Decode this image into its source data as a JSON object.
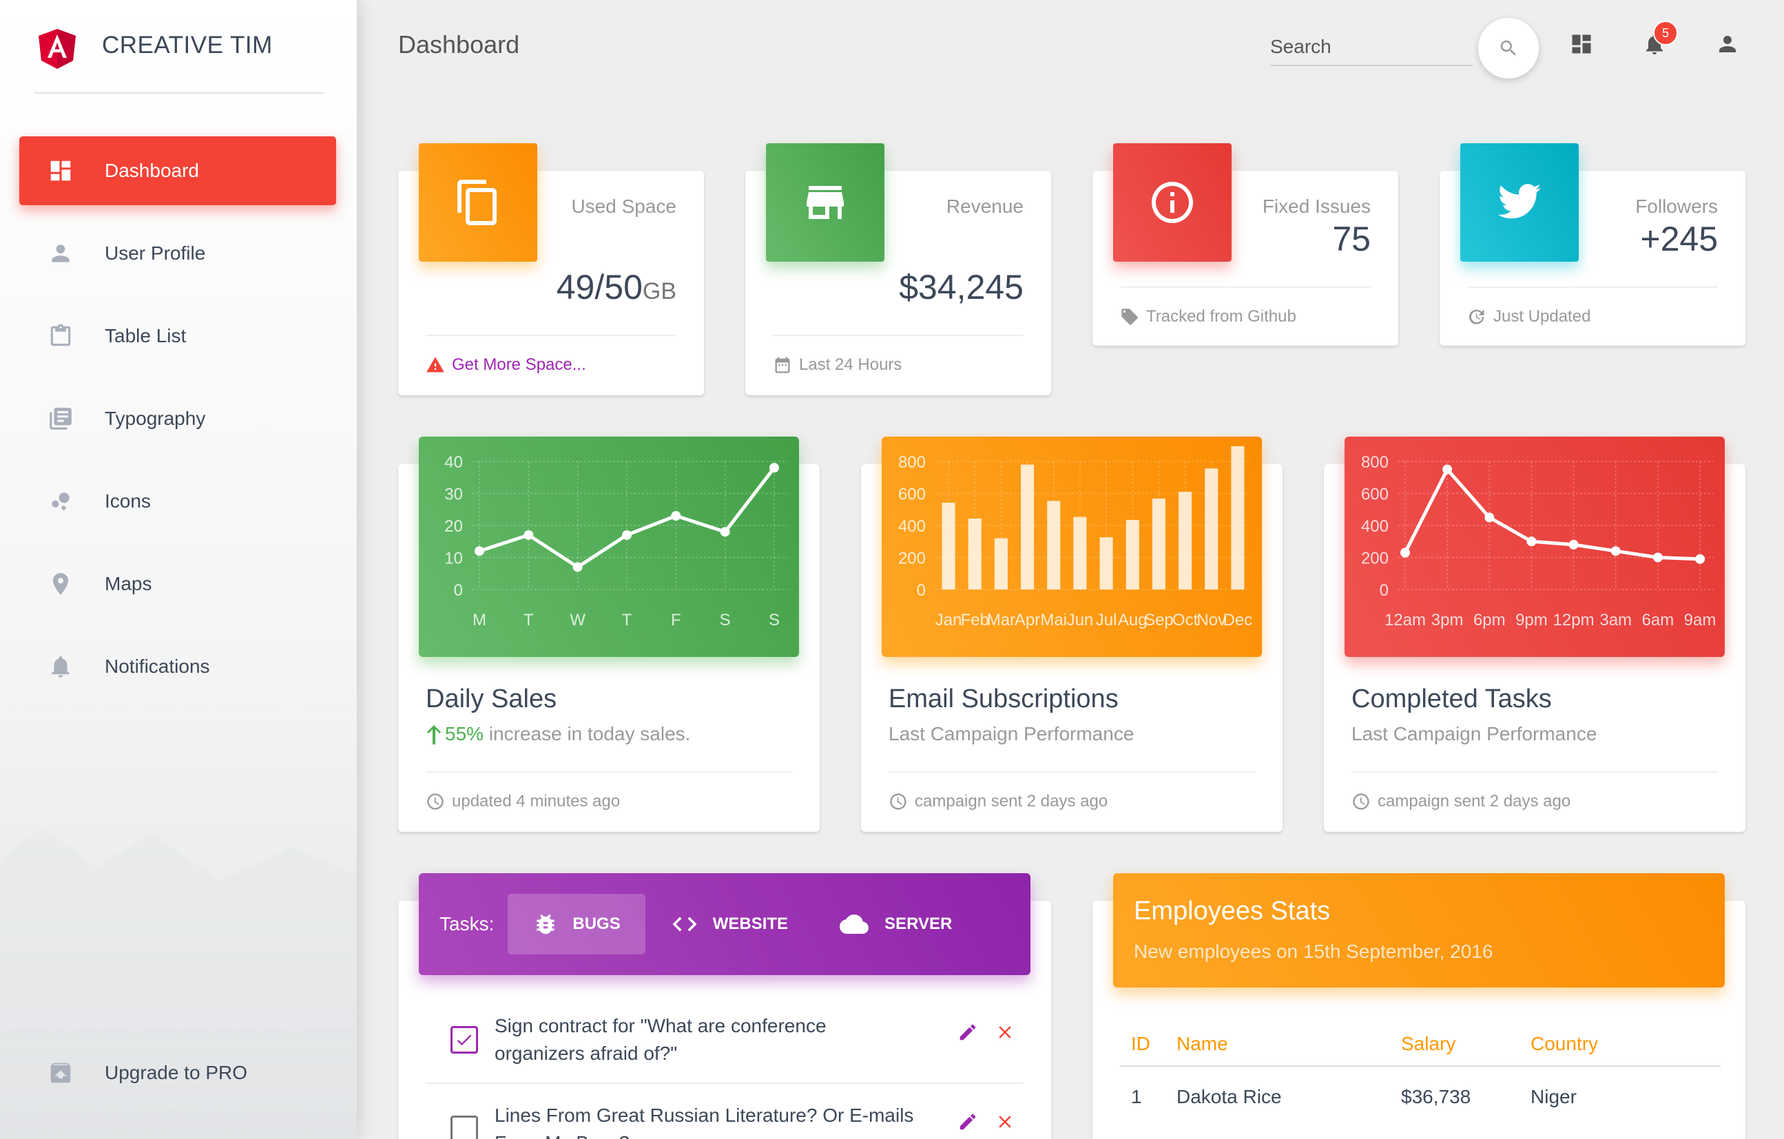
{
  "brand": {
    "name": "CREATIVE TIM"
  },
  "sidebar": {
    "items": [
      {
        "label": "Dashboard",
        "icon": "dashboard-icon",
        "active": true
      },
      {
        "label": "User Profile",
        "icon": "person-icon"
      },
      {
        "label": "Table List",
        "icon": "clipboard-icon"
      },
      {
        "label": "Typography",
        "icon": "library-books-icon"
      },
      {
        "label": "Icons",
        "icon": "bubble-chart-icon"
      },
      {
        "label": "Maps",
        "icon": "location-icon"
      },
      {
        "label": "Notifications",
        "icon": "bell-icon"
      }
    ],
    "upgrade": {
      "label": "Upgrade to PRO",
      "icon": "unarchive-icon"
    }
  },
  "topbar": {
    "title": "Dashboard",
    "search_placeholder": "Search",
    "notification_count": "5"
  },
  "stats": [
    {
      "category": "Used Space",
      "value": "49/50",
      "unit": "GB",
      "footer": "Get More Space...",
      "color": "#ff9800",
      "icon": "content-copy-icon"
    },
    {
      "category": "Revenue",
      "value": "$34,245",
      "footer": "Last 24 Hours",
      "color": "#4caf50",
      "icon": "store-icon"
    },
    {
      "category": "Fixed Issues",
      "value": "75",
      "footer": "Tracked from Github",
      "color": "#f44336",
      "icon": "info-icon"
    },
    {
      "category": "Followers",
      "value": "+245",
      "footer": "Just Updated",
      "color": "#00bcd4",
      "icon": "twitter-icon"
    }
  ],
  "charts": {
    "daily": {
      "title": "Daily Sales",
      "percent": "55%",
      "sub": " increase in today sales.",
      "footer": "updated 4 minutes ago"
    },
    "email": {
      "title": "Email Subscriptions",
      "sub": "Last Campaign Performance",
      "footer": "campaign sent 2 days ago"
    },
    "tasks": {
      "title": "Completed Tasks",
      "sub": "Last Campaign Performance",
      "footer": "campaign sent 2 days ago"
    }
  },
  "chart_data": [
    {
      "type": "line",
      "categories": [
        "M",
        "T",
        "W",
        "T",
        "F",
        "S",
        "S"
      ],
      "values": [
        12,
        17,
        7,
        17,
        23,
        18,
        38
      ],
      "ylim": [
        0,
        40
      ],
      "yticks": [
        0,
        10,
        20,
        30,
        40
      ],
      "color": "#4caf50"
    },
    {
      "type": "bar",
      "categories": [
        "Jan",
        "Feb",
        "Mar",
        "Apr",
        "Mai",
        "Jun",
        "Jul",
        "Aug",
        "Sep",
        "Oct",
        "Nov",
        "Dec"
      ],
      "values": [
        542,
        443,
        320,
        780,
        553,
        453,
        326,
        434,
        568,
        610,
        756,
        895
      ],
      "ylim": [
        0,
        800
      ],
      "yticks": [
        0,
        200,
        400,
        600,
        800
      ],
      "color": "#ff9800"
    },
    {
      "type": "line",
      "categories": [
        "12am",
        "3pm",
        "6pm",
        "9pm",
        "12pm",
        "3am",
        "6am",
        "9am"
      ],
      "values": [
        230,
        750,
        450,
        300,
        280,
        240,
        200,
        190
      ],
      "ylim": [
        0,
        800
      ],
      "yticks": [
        0,
        200,
        400,
        600,
        800
      ],
      "color": "#f44336"
    }
  ],
  "tasks": {
    "label": "Tasks:",
    "tabs": [
      {
        "label": "BUGS",
        "icon": "bug-icon"
      },
      {
        "label": "WEBSITE",
        "icon": "code-icon"
      },
      {
        "label": "SERVER",
        "icon": "cloud-icon"
      }
    ],
    "items": [
      {
        "text": "Sign contract for \"What are conference organizers afraid of?\"",
        "checked": true
      },
      {
        "text": "Lines From Great Russian Literature? Or E-mails From My Boss?",
        "checked": false
      }
    ]
  },
  "employees": {
    "title": "Employees Stats",
    "subtitle": "New employees on 15th September, 2016",
    "columns": [
      "ID",
      "Name",
      "Salary",
      "Country"
    ],
    "rows": [
      [
        "1",
        "Dakota Rice",
        "$36,738",
        "Niger"
      ]
    ]
  }
}
